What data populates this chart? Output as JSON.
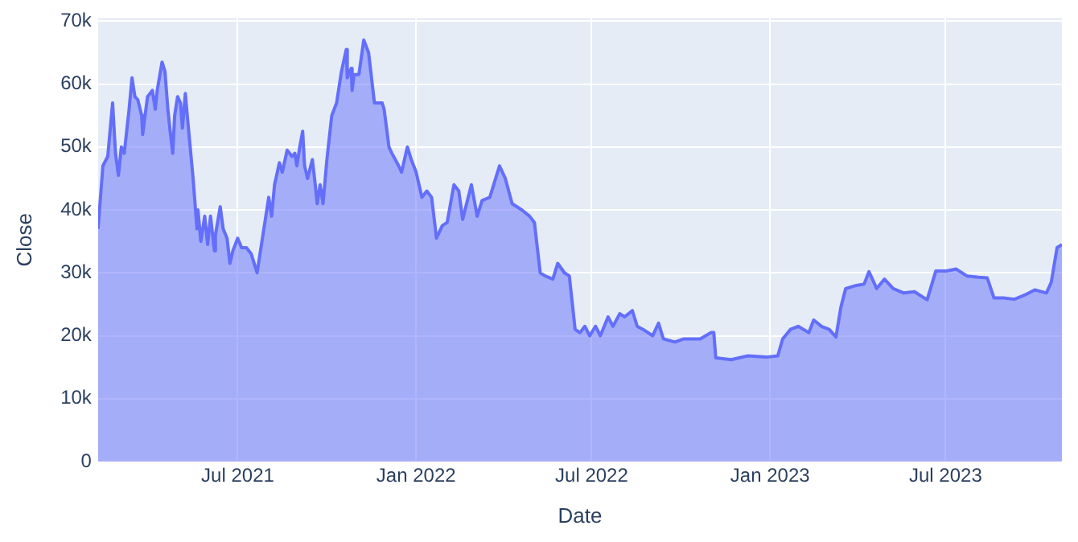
{
  "chart_data": {
    "type": "area",
    "xlabel": "Date",
    "ylabel": "Close",
    "x": [
      "2021-02-07",
      "2021-02-12",
      "2021-02-17",
      "2021-02-22",
      "2021-02-25",
      "2021-02-28",
      "2021-03-03",
      "2021-03-06",
      "2021-03-11",
      "2021-03-14",
      "2021-03-17",
      "2021-03-20",
      "2021-03-24",
      "2021-03-25",
      "2021-03-30",
      "2021-04-04",
      "2021-04-07",
      "2021-04-09",
      "2021-04-14",
      "2021-04-17",
      "2021-04-20",
      "2021-04-22",
      "2021-04-25",
      "2021-04-27",
      "2021-04-30",
      "2021-05-03",
      "2021-05-05",
      "2021-05-08",
      "2021-05-10",
      "2021-05-13",
      "2021-05-16",
      "2021-05-20",
      "2021-05-21",
      "2021-05-24",
      "2021-05-28",
      "2021-05-31",
      "2021-06-03",
      "2021-06-07",
      "2021-06-08",
      "2021-06-13",
      "2021-06-16",
      "2021-06-20",
      "2021-06-23",
      "2021-06-26",
      "2021-07-01",
      "2021-07-05",
      "2021-07-10",
      "2021-07-15",
      "2021-07-18",
      "2021-07-21",
      "2021-07-23",
      "2021-07-29",
      "2021-08-02",
      "2021-08-05",
      "2021-08-08",
      "2021-08-13",
      "2021-08-16",
      "2021-08-21",
      "2021-08-26",
      "2021-08-29",
      "2021-08-31",
      "2021-09-03",
      "2021-09-06",
      "2021-09-08",
      "2021-09-11",
      "2021-09-16",
      "2021-09-19",
      "2021-09-21",
      "2021-09-24",
      "2021-09-27",
      "2021-10-01",
      "2021-10-06",
      "2021-10-11",
      "2021-10-16",
      "2021-10-21",
      "2021-10-22",
      "2021-10-26",
      "2021-10-27",
      "2021-10-29",
      "2021-11-03",
      "2021-11-08",
      "2021-11-13",
      "2021-11-19",
      "2021-11-27",
      "2021-11-29",
      "2021-12-04",
      "2021-12-07",
      "2021-12-14",
      "2021-12-17",
      "2021-12-23",
      "2021-12-27",
      "2022-01-01",
      "2022-01-07",
      "2022-01-12",
      "2022-01-17",
      "2022-01-22",
      "2022-01-28",
      "2022-02-02",
      "2022-02-09",
      "2022-02-14",
      "2022-02-18",
      "2022-02-27",
      "2022-03-05",
      "2022-03-10",
      "2022-03-18",
      "2022-03-28",
      "2022-04-03",
      "2022-04-10",
      "2022-04-20",
      "2022-04-28",
      "2022-05-03",
      "2022-05-09",
      "2022-05-14",
      "2022-05-22",
      "2022-05-27",
      "2022-06-03",
      "2022-06-08",
      "2022-06-14",
      "2022-06-19",
      "2022-06-24",
      "2022-06-29",
      "2022-07-05",
      "2022-07-10",
      "2022-07-18",
      "2022-07-23",
      "2022-07-30",
      "2022-08-04",
      "2022-08-12",
      "2022-08-17",
      "2022-08-23",
      "2022-09-02",
      "2022-09-08",
      "2022-09-13",
      "2022-09-25",
      "2022-10-04",
      "2022-10-16",
      "2022-10-21",
      "2022-11-01",
      "2022-11-04",
      "2022-11-06",
      "2022-11-22",
      "2022-12-09",
      "2022-12-28",
      "2023-01-09",
      "2023-01-14",
      "2023-01-22",
      "2023-01-30",
      "2023-02-10",
      "2023-02-15",
      "2023-02-23",
      "2023-03-03",
      "2023-03-10",
      "2023-03-15",
      "2023-03-20",
      "2023-03-31",
      "2023-04-08",
      "2023-04-13",
      "2023-04-21",
      "2023-04-29",
      "2023-05-08",
      "2023-05-19",
      "2023-05-30",
      "2023-06-12",
      "2023-06-21",
      "2023-07-02",
      "2023-07-12",
      "2023-07-23",
      "2023-08-04",
      "2023-08-13",
      "2023-08-20",
      "2023-08-30",
      "2023-09-10",
      "2023-09-21",
      "2023-10-01",
      "2023-10-13",
      "2023-10-18",
      "2023-10-24",
      "2023-10-29"
    ],
    "series": [
      {
        "color": "#636efa",
        "values": [
          37000,
          47000,
          48500,
          57000,
          49000,
          45500,
          50000,
          49000,
          56000,
          61000,
          58000,
          57500,
          55000,
          52000,
          58000,
          59000,
          56000,
          59000,
          63500,
          62000,
          56000,
          53000,
          49000,
          55000,
          58000,
          57000,
          53000,
          58500,
          55000,
          50000,
          45000,
          37000,
          40000,
          35000,
          39000,
          34500,
          39000,
          33500,
          36000,
          40500,
          37000,
          35500,
          31500,
          33500,
          35500,
          34000,
          34000,
          33000,
          31500,
          30000,
          32000,
          38000,
          42000,
          39000,
          44000,
          47500,
          46000,
          49500,
          48500,
          49000,
          47000,
          50000,
          52500,
          47000,
          45000,
          48000,
          44000,
          41000,
          44000,
          41000,
          48000,
          55000,
          57000,
          62000,
          65500,
          61000,
          62500,
          59000,
          61500,
          61500,
          67000,
          65000,
          57000,
          57000,
          56000,
          50000,
          49000,
          47000,
          46000,
          50000,
          48000,
          46000,
          42000,
          43000,
          42000,
          35500,
          37500,
          38000,
          44000,
          43000,
          38500,
          44000,
          39000,
          41500,
          42000,
          47000,
          45000,
          41000,
          40000,
          39000,
          38000,
          30000,
          29500,
          29000,
          31500,
          30000,
          29500,
          21000,
          20500,
          21500,
          20000,
          21500,
          20000,
          23000,
          21500,
          23500,
          23000,
          24000,
          21500,
          21000,
          20000,
          22000,
          19500,
          19000,
          19500,
          19500,
          19500,
          20500,
          20500,
          16500,
          16200,
          16800,
          16600,
          16800,
          19500,
          21000,
          21500,
          20500,
          22500,
          21500,
          21000,
          19800,
          24500,
          27500,
          28000,
          28200,
          30200,
          27500,
          29000,
          27500,
          26800,
          27000,
          25700,
          30300,
          30300,
          30600,
          29500,
          29300,
          29200,
          26000,
          26000,
          25800,
          26500,
          27300,
          26800,
          28500,
          34000,
          34500
        ]
      }
    ],
    "xlim": [
      "2021-02-07",
      "2023-10-29"
    ],
    "xticks": [
      {
        "value": "2021-07-01",
        "label": "Jul 2021"
      },
      {
        "value": "2022-01-01",
        "label": "Jan 2022"
      },
      {
        "value": "2022-07-01",
        "label": "Jul 2022"
      },
      {
        "value": "2023-01-01",
        "label": "Jan 2023"
      },
      {
        "value": "2023-07-01",
        "label": "Jul 2023"
      }
    ],
    "ylim": [
      0,
      70500
    ],
    "yticks": [
      0,
      {
        "value": 10000,
        "label": "10k"
      },
      {
        "value": 20000,
        "label": "20k"
      },
      {
        "value": 30000,
        "label": "30k"
      },
      {
        "value": 40000,
        "label": "40k"
      },
      {
        "value": 50000,
        "label": "50k"
      },
      {
        "value": 60000,
        "label": "60k"
      },
      {
        "value": 70000,
        "label": "70k"
      }
    ],
    "grid": true,
    "legend": false
  }
}
